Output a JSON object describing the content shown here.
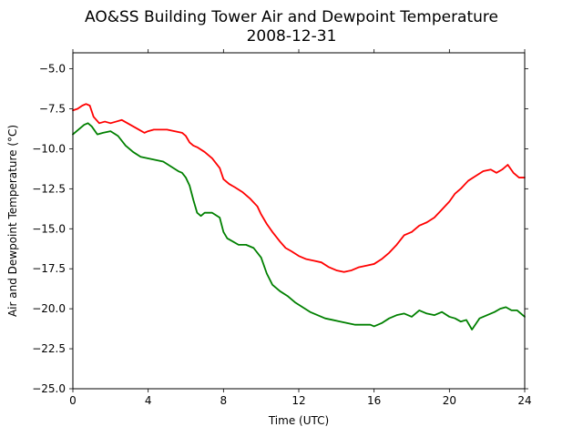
{
  "chart_data": {
    "type": "line",
    "title": "AO&SS Building Tower Air and Dewpoint Temperature",
    "subtitle": "2008-12-31",
    "xlabel": "Time (UTC)",
    "ylabel": "Air and Dewpoint Temperature (°C)",
    "xlim": [
      0,
      24
    ],
    "ylim": [
      -25.0,
      -4.0
    ],
    "x_ticks": [
      0,
      4,
      8,
      12,
      16,
      20,
      24
    ],
    "x_tick_labels": [
      "0",
      "4",
      "8",
      "12",
      "16",
      "20",
      "24"
    ],
    "y_ticks": [
      -25.0,
      -22.5,
      -20.0,
      -17.5,
      -15.0,
      -12.5,
      -10.0,
      -7.5,
      -5.0
    ],
    "y_tick_labels": [
      "−25.0",
      "−22.5",
      "−20.0",
      "−17.5",
      "−15.0",
      "−12.5",
      "−10.0",
      "−7.5",
      "−5.0"
    ],
    "grid": false,
    "legend": "none",
    "series": [
      {
        "color": "#ff0000",
        "x": [
          0,
          0.25,
          0.5,
          0.7,
          0.9,
          1.1,
          1.4,
          1.7,
          2.0,
          2.3,
          2.6,
          2.9,
          3.2,
          3.5,
          3.8,
          4.0,
          4.3,
          4.6,
          5.0,
          5.4,
          5.8,
          6.0,
          6.2,
          6.4,
          6.6,
          7.0,
          7.4,
          7.8,
          8.0,
          8.3,
          8.6,
          9.0,
          9.4,
          9.8,
          10.0,
          10.3,
          10.6,
          11.0,
          11.3,
          11.6,
          12.0,
          12.4,
          12.8,
          13.2,
          13.6,
          14.0,
          14.4,
          14.8,
          15.2,
          15.6,
          16.0,
          16.4,
          16.8,
          17.2,
          17.6,
          18.0,
          18.4,
          18.8,
          19.2,
          19.6,
          20.0,
          20.3,
          20.6,
          21.0,
          21.4,
          21.8,
          22.2,
          22.5,
          22.8,
          23.1,
          23.4,
          23.7,
          24.0
        ],
        "y": [
          -7.6,
          -7.5,
          -7.3,
          -7.2,
          -7.3,
          -8.0,
          -8.4,
          -8.3,
          -8.4,
          -8.3,
          -8.2,
          -8.4,
          -8.6,
          -8.8,
          -9.0,
          -8.9,
          -8.8,
          -8.8,
          -8.8,
          -8.9,
          -9.0,
          -9.2,
          -9.6,
          -9.8,
          -9.9,
          -10.2,
          -10.6,
          -11.2,
          -11.9,
          -12.2,
          -12.4,
          -12.7,
          -13.1,
          -13.6,
          -14.1,
          -14.7,
          -15.2,
          -15.8,
          -16.2,
          -16.4,
          -16.7,
          -16.9,
          -17.0,
          -17.1,
          -17.4,
          -17.6,
          -17.7,
          -17.6,
          -17.4,
          -17.3,
          -17.2,
          -16.9,
          -16.5,
          -16.0,
          -15.4,
          -15.2,
          -14.8,
          -14.6,
          -14.3,
          -13.8,
          -13.3,
          -12.8,
          -12.5,
          -12.0,
          -11.7,
          -11.4,
          -11.3,
          -11.5,
          -11.3,
          -11.0,
          -11.5,
          -11.8,
          -11.8
        ]
      },
      {
        "color": "#008000",
        "x": [
          0,
          0.2,
          0.4,
          0.6,
          0.8,
          1.0,
          1.3,
          1.6,
          2.0,
          2.4,
          2.8,
          3.2,
          3.6,
          4.0,
          4.4,
          4.8,
          5.2,
          5.6,
          5.8,
          6.0,
          6.2,
          6.4,
          6.6,
          6.8,
          7.0,
          7.4,
          7.8,
          8.0,
          8.2,
          8.5,
          8.8,
          9.2,
          9.6,
          10.0,
          10.3,
          10.6,
          11.0,
          11.4,
          11.8,
          12.2,
          12.6,
          13.0,
          13.4,
          13.8,
          14.2,
          14.6,
          15.0,
          15.4,
          15.8,
          16.0,
          16.4,
          16.8,
          17.2,
          17.6,
          18.0,
          18.4,
          18.8,
          19.2,
          19.6,
          20.0,
          20.3,
          20.6,
          20.9,
          21.2,
          21.6,
          22.0,
          22.4,
          22.7,
          23.0,
          23.3,
          23.6,
          24.0
        ],
        "y": [
          -9.1,
          -8.9,
          -8.7,
          -8.5,
          -8.4,
          -8.6,
          -9.1,
          -9.0,
          -8.9,
          -9.2,
          -9.8,
          -10.2,
          -10.5,
          -10.6,
          -10.7,
          -10.8,
          -11.1,
          -11.4,
          -11.5,
          -11.8,
          -12.3,
          -13.2,
          -14.0,
          -14.2,
          -14.0,
          -14.0,
          -14.3,
          -15.2,
          -15.6,
          -15.8,
          -16.0,
          -16.0,
          -16.2,
          -16.8,
          -17.8,
          -18.5,
          -18.9,
          -19.2,
          -19.6,
          -19.9,
          -20.2,
          -20.4,
          -20.6,
          -20.7,
          -20.8,
          -20.9,
          -21.0,
          -21.0,
          -21.0,
          -21.1,
          -20.9,
          -20.6,
          -20.4,
          -20.3,
          -20.5,
          -20.1,
          -20.3,
          -20.4,
          -20.2,
          -20.5,
          -20.6,
          -20.8,
          -20.7,
          -21.3,
          -20.6,
          -20.4,
          -20.2,
          -20.0,
          -19.9,
          -20.1,
          -20.1,
          -20.5
        ]
      }
    ]
  }
}
